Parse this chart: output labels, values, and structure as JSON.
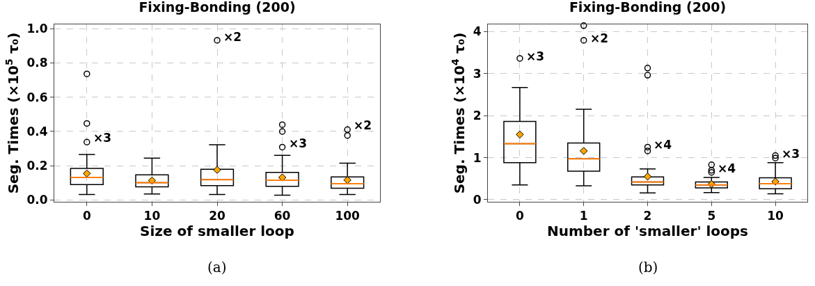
{
  "chart_data": [
    {
      "type": "box",
      "title": "Fixing-Bonding (200)",
      "xlabel": "Size of smaller loop",
      "ylabel": "Seg. Times (×10$^{5}$ τ₀)",
      "categories": [
        "0",
        "10",
        "20",
        "60",
        "100"
      ],
      "boxes": [
        {
          "low": 0.033,
          "q1": 0.09,
          "median": 0.132,
          "q3": 0.185,
          "high": 0.266,
          "mean": 0.155,
          "outliers": [
            0.338,
            0.447,
            0.736
          ]
        },
        {
          "low": 0.036,
          "q1": 0.077,
          "median": 0.102,
          "q3": 0.147,
          "high": 0.245,
          "mean": 0.114
        },
        {
          "low": 0.033,
          "q1": 0.084,
          "median": 0.119,
          "q3": 0.18,
          "high": 0.323,
          "mean": 0.176,
          "outliers": [
            0.932
          ]
        },
        {
          "low": 0.029,
          "q1": 0.08,
          "median": 0.116,
          "q3": 0.161,
          "high": 0.261,
          "mean": 0.132,
          "outliers": [
            0.309,
            0.4,
            0.44
          ]
        },
        {
          "low": 0.033,
          "q1": 0.069,
          "median": 0.096,
          "q3": 0.135,
          "high": 0.215,
          "mean": 0.117,
          "outliers": [
            0.377,
            0.411
          ]
        }
      ],
      "color": "#000000",
      "marker": "diamond",
      "ylim": [
        -0.01,
        1.025
      ],
      "yticks": [
        {
          "value": 0,
          "label": "0.0"
        },
        0.2,
        0.4,
        0.6,
        0.8,
        {
          "value": 1,
          "label": "1.0"
        }
      ],
      "grid": true,
      "annotations": [
        "×3",
        "×2",
        "×3",
        "×2",
        "(a)"
      ]
    },
    {
      "type": "box",
      "title": "Fixing-Bonding (200)",
      "xlabel": "Number of 'smaller' loops",
      "ylabel": "Seg. Times (×10$^{4}$ τ₀)",
      "categories": [
        "0",
        "1",
        "2",
        "5",
        "10"
      ],
      "boxes": [
        {
          "low": 0.35,
          "q1": 0.88,
          "median": 1.33,
          "q3": 1.86,
          "high": 2.67,
          "mean": 1.55,
          "outliers": [
            3.36
          ]
        },
        {
          "low": 0.33,
          "q1": 0.68,
          "median": 0.97,
          "q3": 1.35,
          "high": 2.15,
          "mean": 1.16,
          "outliers": [
            3.79,
            4.14
          ]
        },
        {
          "low": 0.16,
          "q1": 0.35,
          "median": 0.42,
          "q3": 0.54,
          "high": 0.73,
          "mean": 0.55,
          "outliers": [
            1.16,
            1.25,
            2.96,
            3.13
          ]
        },
        {
          "low": 0.17,
          "q1": 0.28,
          "median": 0.35,
          "q3": 0.42,
          "high": 0.53,
          "mean": 0.37,
          "outliers": [
            0.65,
            0.7,
            0.83
          ]
        },
        {
          "low": 0.14,
          "q1": 0.26,
          "median": 0.38,
          "q3": 0.52,
          "high": 0.88,
          "mean": 0.43,
          "outliers": [
            0.99,
            1.05
          ]
        }
      ],
      "color": "#000000",
      "marker": "diamond",
      "ylim": [
        -0.05,
        4.17
      ],
      "yticks": [
        0,
        1,
        2,
        3,
        4
      ],
      "grid": true,
      "annotations": [
        "×3",
        "×2",
        "×4",
        "×4",
        "×3",
        "(b)"
      ]
    }
  ]
}
